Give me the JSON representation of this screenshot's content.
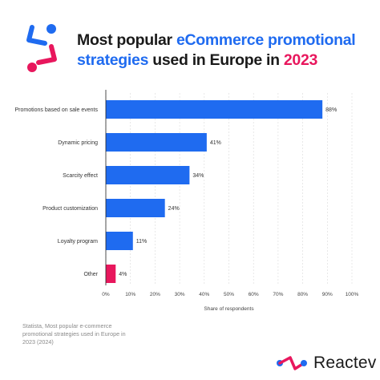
{
  "header": {
    "title_part1": "Most popular ",
    "title_part2": "eCommerce promotional strategies",
    "title_part3": " used in Europe in ",
    "title_part4": "2023"
  },
  "colors": {
    "bar_main": "#1f6bf0",
    "bar_other": "#e8175d",
    "accent_blue": "#1f6bf0",
    "accent_pink": "#e8175d"
  },
  "footer": {
    "source": "Statista, Most popular e-commerce promotional strategies used in Europe in 2023 (2024)",
    "brand": "Reactev",
    "logo_icon": "reactev-logo-icon"
  },
  "chart_data": {
    "type": "bar",
    "orientation": "horizontal",
    "categories": [
      "Promotions based on sale events",
      "Dynamic pricing",
      "Scarcity effect",
      "Product customization",
      "Loyalty program",
      "Other"
    ],
    "values": [
      88,
      41,
      34,
      24,
      11,
      4
    ],
    "data_labels": [
      "88%",
      "41%",
      "34%",
      "24%",
      "11%",
      "4%"
    ],
    "xlabel": "Share of respondents",
    "ylabel": "",
    "xlim": [
      0,
      100
    ],
    "x_ticks": [
      "0%",
      "10%",
      "20%",
      "30%",
      "40%",
      "50%",
      "60%",
      "70%",
      "80%",
      "90%",
      "100%"
    ],
    "grid": true
  }
}
